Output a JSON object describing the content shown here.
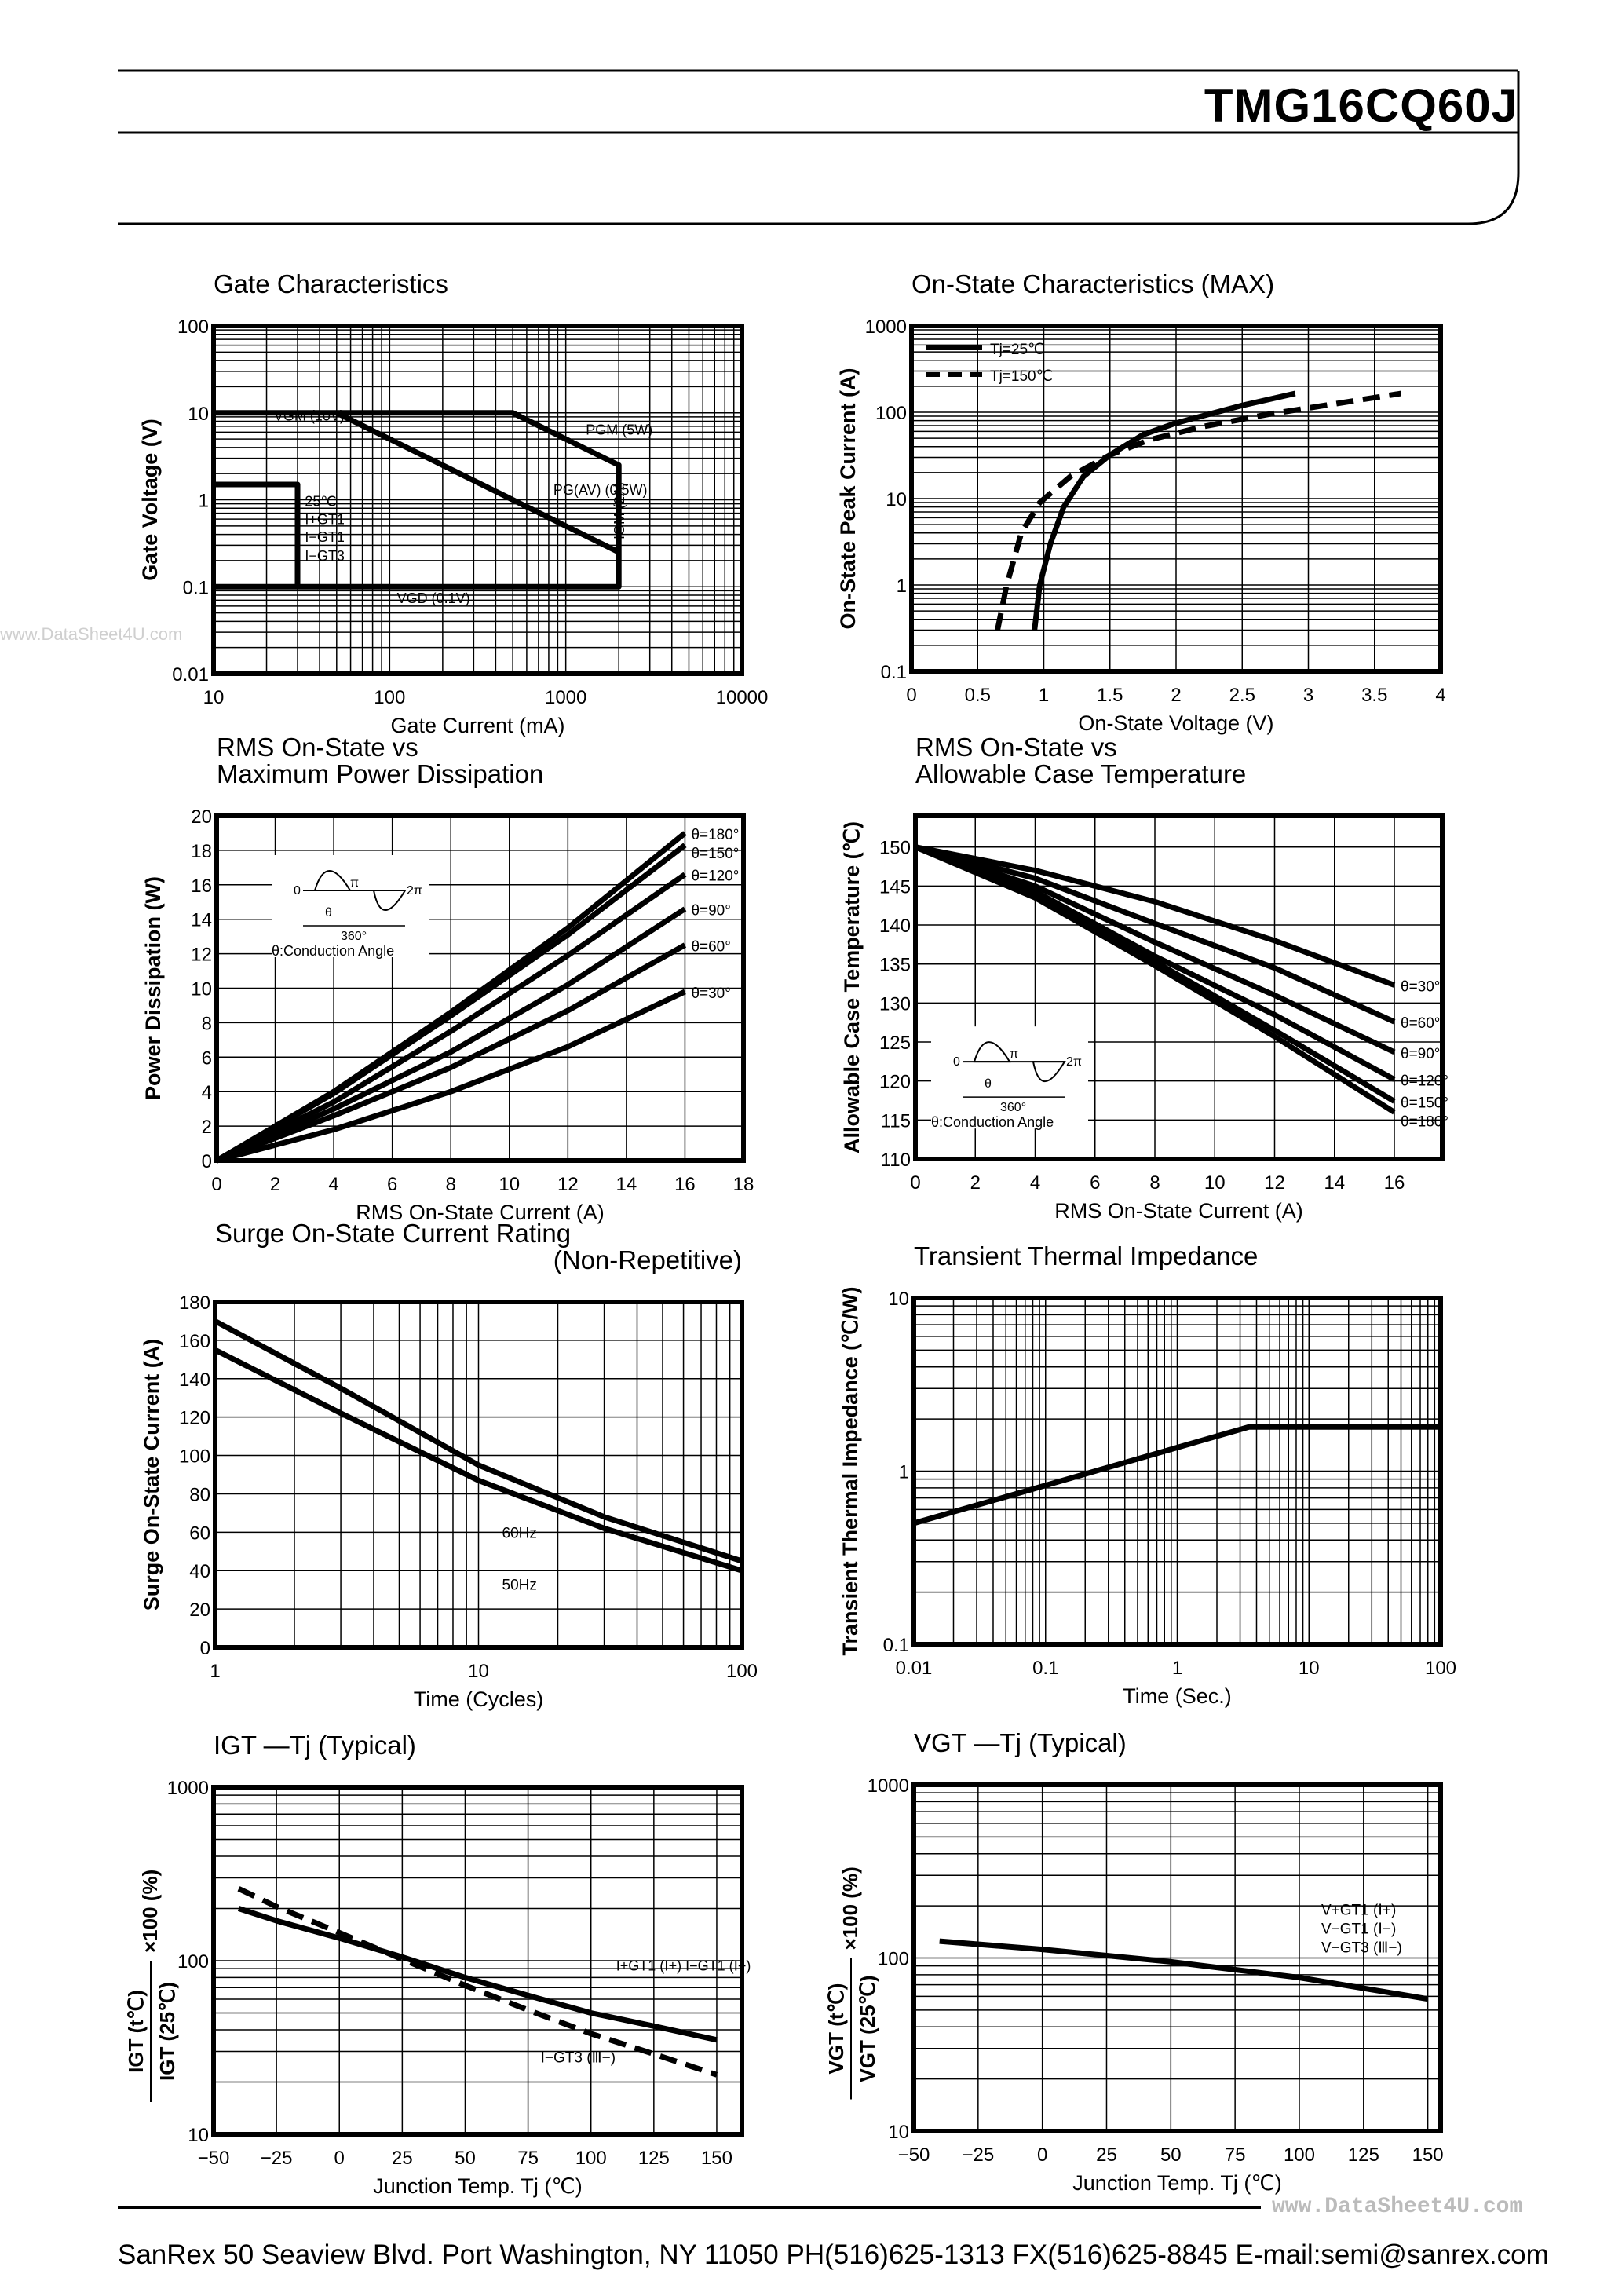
{
  "header": {
    "part_number": "TMG16CQ60J"
  },
  "watermark": "www.DataSheet4U.com",
  "footer": {
    "text": "SanRex 50 Seaview Blvd. Port Washington, NY 11050 PH(516)625-1313 FX(516)625-8845 E-mail:semi@sanrex.com",
    "watermark": "www.DataSheet4U.com"
  },
  "chart_data": [
    {
      "type": "line",
      "title": [
        "Gate Characteristics"
      ],
      "xlabel": "Gate Current (mA)",
      "ylabel": "Gate Voltage (V)",
      "xscale": "log",
      "yscale": "log",
      "xlim": [
        10,
        10000
      ],
      "ylim": [
        0.01,
        100
      ],
      "xticks": [
        "10",
        "100",
        "1000",
        "10000"
      ],
      "yticks": [
        "0.01",
        "0.1",
        "1",
        "10",
        "100"
      ],
      "grid": true,
      "series": [
        {
          "points": [
            [
              10,
              10
            ],
            [
              500,
              10
            ],
            [
              2000,
              2.5
            ],
            [
              2000,
              0.1
            ],
            [
              10,
              0.1
            ]
          ]
        },
        {
          "points": [
            [
              50,
              10
            ],
            [
              2000,
              0.25
            ]
          ]
        },
        {
          "points": [
            [
              10,
              1.5
            ],
            [
              30,
              1.5
            ],
            [
              30,
              0.1
            ]
          ]
        }
      ],
      "annotations": [
        {
          "text": "VGM (10V)",
          "x": 22,
          "y": 8.2
        },
        {
          "text": "PGM (5W)",
          "x": 1300,
          "y": 5.6
        },
        {
          "text": "PG(AV) (0.5W)",
          "x": 850,
          "y": 1.15
        },
        {
          "text": "IGM (2A)",
          "x": 2150,
          "y": 0.35,
          "rotate": true
        },
        {
          "text": "VGD (0.1V)",
          "x": 110,
          "y": 0.065
        },
        {
          "text": "25℃",
          "x": 33,
          "y": 0.85
        },
        {
          "text": "I+GT1",
          "x": 33,
          "y": 0.55
        },
        {
          "text": "I−GT1",
          "x": 33,
          "y": 0.33
        },
        {
          "text": "I−GT3",
          "x": 33,
          "y": 0.2
        }
      ]
    },
    {
      "type": "line",
      "title": [
        "On-State Characteristics (MAX)"
      ],
      "xlabel": "On-State Voltage (V)",
      "ylabel": "On-State Peak Current (A)",
      "xscale": "linear",
      "yscale": "log",
      "xlim": [
        0,
        4
      ],
      "ylim": [
        0.1,
        1000
      ],
      "xticks": [
        "0",
        "0.5",
        "1",
        "1.5",
        "2",
        "2.5",
        "3",
        "3.5",
        "4"
      ],
      "yticks": [
        "0.1",
        "1",
        "10",
        "100",
        "1000"
      ],
      "grid": true,
      "legend": "top-left",
      "series": [
        {
          "name": "Tj=25℃",
          "dashed": false,
          "points": [
            [
              0.93,
              0.3
            ],
            [
              0.97,
              1
            ],
            [
              1.05,
              3
            ],
            [
              1.15,
              8
            ],
            [
              1.3,
              18
            ],
            [
              1.5,
              32
            ],
            [
              1.75,
              55
            ],
            [
              2,
              75
            ],
            [
              2.5,
              120
            ],
            [
              2.9,
              165
            ]
          ]
        },
        {
          "name": "Tj=150℃",
          "dashed": true,
          "points": [
            [
              0.65,
              0.3
            ],
            [
              0.72,
              1
            ],
            [
              0.83,
              4
            ],
            [
              0.97,
              9
            ],
            [
              1.2,
              18
            ],
            [
              1.5,
              32
            ],
            [
              1.8,
              48
            ],
            [
              2.2,
              68
            ],
            [
              2.7,
              95
            ],
            [
              3.2,
              125
            ],
            [
              3.7,
              165
            ]
          ]
        }
      ]
    },
    {
      "type": "line",
      "title": [
        "RMS On-State vs",
        "Maximum Power Dissipation"
      ],
      "xlabel": "RMS On-State Current (A)",
      "ylabel": "Power Dissipation (W)",
      "xscale": "linear",
      "yscale": "linear",
      "xlim": [
        0,
        18
      ],
      "ylim": [
        0,
        20
      ],
      "xticks": [
        "0",
        "2",
        "4",
        "6",
        "8",
        "10",
        "12",
        "14",
        "16",
        "18"
      ],
      "yticks": [
        "0",
        "2",
        "4",
        "6",
        "8",
        "10",
        "12",
        "14",
        "16",
        "18",
        "20"
      ],
      "grid": true,
      "inset": "θ:Conduction Angle",
      "inset_marks": [
        "0",
        "π",
        "2π",
        "θ",
        "360°"
      ],
      "series": [
        {
          "name": "θ=180°",
          "points": [
            [
              0,
              0
            ],
            [
              4,
              4
            ],
            [
              8,
              8.6
            ],
            [
              12,
              13.5
            ],
            [
              16,
              19
            ]
          ]
        },
        {
          "name": "θ=150°",
          "points": [
            [
              0,
              0
            ],
            [
              4,
              3.9
            ],
            [
              8,
              8.4
            ],
            [
              12,
              13.1
            ],
            [
              16,
              18.3
            ]
          ]
        },
        {
          "name": "θ=120°",
          "points": [
            [
              0,
              0
            ],
            [
              4,
              3.4
            ],
            [
              8,
              7.5
            ],
            [
              12,
              11.9
            ],
            [
              16,
              16.6
            ]
          ]
        },
        {
          "name": "θ=90°",
          "points": [
            [
              0,
              0
            ],
            [
              4,
              3
            ],
            [
              8,
              6.3
            ],
            [
              12,
              10.2
            ],
            [
              16,
              14.6
            ]
          ]
        },
        {
          "name": "θ=60°",
          "points": [
            [
              0,
              0
            ],
            [
              4,
              2.6
            ],
            [
              8,
              5.4
            ],
            [
              12,
              8.7
            ],
            [
              16,
              12.5
            ]
          ]
        },
        {
          "name": "θ=30°",
          "points": [
            [
              0,
              0
            ],
            [
              4,
              1.8
            ],
            [
              8,
              4
            ],
            [
              12,
              6.6
            ],
            [
              16,
              9.8
            ]
          ]
        }
      ]
    },
    {
      "type": "line",
      "title": [
        "RMS On-State vs",
        "Allowable Case Temperature"
      ],
      "xlabel": "RMS On-State Current (A)",
      "ylabel": "Allowable Case Temperature (℃)",
      "xscale": "linear",
      "yscale": "linear",
      "xlim": [
        0,
        17.6
      ],
      "ylim": [
        110,
        154
      ],
      "xticks": [
        "0",
        "2",
        "4",
        "6",
        "8",
        "10",
        "12",
        "14",
        "16"
      ],
      "yticks": [
        "110",
        "115",
        "120",
        "125",
        "130",
        "135",
        "140",
        "145",
        "150"
      ],
      "grid": true,
      "inset": "θ:Conduction Angle",
      "inset_marks": [
        "0",
        "π",
        "2π",
        "θ",
        "360°"
      ],
      "series": [
        {
          "name": "θ=30°",
          "points": [
            [
              0,
              150
            ],
            [
              4,
              147
            ],
            [
              8,
              143
            ],
            [
              12,
              138
            ],
            [
              16,
              132.3
            ]
          ]
        },
        {
          "name": "θ=60°",
          "points": [
            [
              0,
              150
            ],
            [
              4,
              146
            ],
            [
              8,
              140.2
            ],
            [
              12,
              134.5
            ],
            [
              16,
              127.6
            ]
          ]
        },
        {
          "name": "θ=90°",
          "points": [
            [
              0,
              150
            ],
            [
              4,
              145
            ],
            [
              8,
              137.8
            ],
            [
              12,
              131
            ],
            [
              16,
              123.7
            ]
          ]
        },
        {
          "name": "θ=120°",
          "points": [
            [
              0,
              150
            ],
            [
              4,
              144.3
            ],
            [
              8,
              136
            ],
            [
              12,
              128.5
            ],
            [
              16,
              120.2
            ]
          ]
        },
        {
          "name": "θ=150°",
          "points": [
            [
              0,
              150
            ],
            [
              4,
              143.8
            ],
            [
              8,
              135.3
            ],
            [
              12,
              126.5
            ],
            [
              16,
              117.4
            ]
          ]
        },
        {
          "name": "θ=180°",
          "points": [
            [
              0,
              150
            ],
            [
              4,
              143.5
            ],
            [
              8,
              134.8
            ],
            [
              12,
              125.7
            ],
            [
              16,
              116
            ]
          ]
        }
      ]
    },
    {
      "type": "line",
      "title": [
        "Surge On-State Current Rating",
        "(Non-Repetitive)"
      ],
      "xlabel": "Time (Cycles)",
      "ylabel": "Surge On-State Current (A)",
      "xscale": "log",
      "yscale": "linear",
      "xlim": [
        1,
        100
      ],
      "ylim": [
        0,
        180
      ],
      "xticks": [
        "1",
        "10",
        "100"
      ],
      "yticks": [
        "0",
        "20",
        "40",
        "60",
        "80",
        "100",
        "120",
        "140",
        "160",
        "180"
      ],
      "grid": true,
      "series": [
        {
          "name": "60Hz",
          "points": [
            [
              1,
              170
            ],
            [
              3,
              135
            ],
            [
              10,
              95
            ],
            [
              30,
              68
            ],
            [
              100,
              45
            ]
          ]
        },
        {
          "name": "50Hz",
          "points": [
            [
              1,
              155
            ],
            [
              3,
              122
            ],
            [
              10,
              87
            ],
            [
              30,
              62
            ],
            [
              100,
              40
            ]
          ]
        }
      ]
    },
    {
      "type": "line",
      "title": [
        "Transient Thermal Impedance"
      ],
      "xlabel": "Time (Sec.)",
      "ylabel": "Transient Thermal Impedance (℃/W)",
      "xscale": "log",
      "yscale": "log",
      "xlim": [
        0.01,
        100
      ],
      "ylim": [
        0.1,
        10
      ],
      "xticks": [
        "0.01",
        "0.1",
        "1",
        "10",
        "100"
      ],
      "yticks": [
        "0.1",
        "1",
        "10"
      ],
      "grid": true,
      "series": [
        {
          "points": [
            [
              0.01,
              0.5
            ],
            [
              3.5,
              1.8
            ],
            [
              100,
              1.8
            ]
          ]
        }
      ]
    },
    {
      "type": "line",
      "title": [
        "IGT —Tj (Typical)"
      ],
      "xlabel": "Junction Temp. Tj (℃)",
      "ylabel": {
        "num": "IGT (t℃)",
        "den": "IGT (25℃)",
        "suffix": "×100 (%)"
      },
      "xscale": "linear",
      "yscale": "log",
      "xlim": [
        -50,
        160
      ],
      "ylim": [
        10,
        1000
      ],
      "xticks": [
        "−50",
        "−25",
        "0",
        "25",
        "50",
        "75",
        "100",
        "125",
        "150"
      ],
      "yticks": [
        "10",
        "100",
        "1000"
      ],
      "grid": true,
      "series": [
        {
          "name": "I+GT1 (Ⅰ+)  I−GT1 (Ⅰ−)",
          "dashed": false,
          "points": [
            [
              -40,
              200
            ],
            [
              -25,
              170
            ],
            [
              0,
              135
            ],
            [
              25,
              105
            ],
            [
              50,
              80
            ],
            [
              75,
              63
            ],
            [
              100,
              50
            ],
            [
              125,
              42
            ],
            [
              150,
              35
            ]
          ]
        },
        {
          "name": "I−GT3 (Ⅲ−)",
          "dashed": true,
          "points": [
            [
              -40,
              260
            ],
            [
              -25,
              205
            ],
            [
              0,
              145
            ],
            [
              25,
              102
            ],
            [
              50,
              72
            ],
            [
              75,
              52
            ],
            [
              100,
              38
            ],
            [
              125,
              29
            ],
            [
              150,
              22
            ]
          ]
        }
      ]
    },
    {
      "type": "line",
      "title": [
        "VGT —Tj (Typical)"
      ],
      "xlabel": "Junction Temp. Tj (℃)",
      "ylabel": {
        "num": "VGT (t℃)",
        "den": "VGT (25℃)",
        "suffix": "×100 (%)"
      },
      "xscale": "linear",
      "yscale": "log",
      "xlim": [
        -50,
        155
      ],
      "ylim": [
        10,
        1000
      ],
      "xticks": [
        "−50",
        "−25",
        "0",
        "25",
        "50",
        "75",
        "100",
        "125",
        "150"
      ],
      "yticks": [
        "10",
        "100",
        "1000"
      ],
      "grid": true,
      "legend_lines": [
        "V+GT1 (Ⅰ+)",
        "V−GT1 (Ⅰ−)",
        "V−GT3 (Ⅲ−)"
      ],
      "series": [
        {
          "points": [
            [
              -40,
              125
            ],
            [
              0,
              112
            ],
            [
              50,
              95
            ],
            [
              100,
              77
            ],
            [
              150,
              58
            ]
          ]
        }
      ]
    }
  ]
}
